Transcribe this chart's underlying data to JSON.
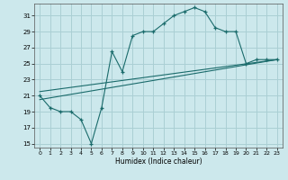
{
  "xlabel": "Humidex (Indice chaleur)",
  "xlim": [
    -0.5,
    23.5
  ],
  "ylim": [
    14.5,
    32.5
  ],
  "yticks": [
    15,
    17,
    19,
    21,
    23,
    25,
    27,
    29,
    31
  ],
  "xticks": [
    0,
    1,
    2,
    3,
    4,
    5,
    6,
    7,
    8,
    9,
    10,
    11,
    12,
    13,
    14,
    15,
    16,
    17,
    18,
    19,
    20,
    21,
    22,
    23
  ],
  "background_color": "#cce8ec",
  "grid_color": "#aacfd4",
  "line_color": "#1a6b6b",
  "line1_x": [
    0,
    1,
    2,
    3,
    4,
    5,
    6,
    7,
    8,
    9,
    10,
    11,
    12,
    13,
    14,
    15,
    16,
    17,
    18,
    19,
    20,
    21,
    22,
    23
  ],
  "line1_y": [
    21.0,
    19.5,
    19.0,
    19.0,
    18.0,
    15.0,
    19.5,
    26.5,
    24.0,
    28.5,
    29.0,
    29.0,
    30.0,
    31.0,
    31.5,
    32.0,
    31.5,
    29.5,
    29.0,
    29.0,
    25.0,
    25.5,
    25.5,
    25.5
  ],
  "line2_x": [
    0,
    23
  ],
  "line2_y": [
    20.5,
    25.5
  ],
  "line3_x": [
    0,
    23
  ],
  "line3_y": [
    21.5,
    25.5
  ]
}
